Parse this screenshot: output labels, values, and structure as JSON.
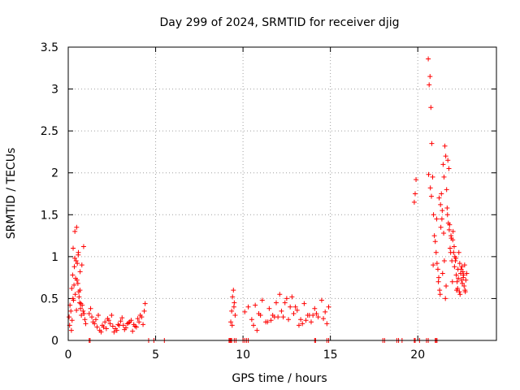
{
  "chart_data": {
    "type": "scatter",
    "title": "Day 299 of 2024, SRMTID for receiver djig",
    "xlabel": "GPS time / hours",
    "ylabel": "SRMTID / TECUs",
    "xlim": [
      0,
      24.5
    ],
    "ylim": [
      0,
      3.5
    ],
    "xticks": [
      0,
      5,
      10,
      15,
      20
    ],
    "xtick_labels": [
      "0",
      "5",
      "10",
      "15",
      "20"
    ],
    "yticks": [
      0,
      0.5,
      1,
      1.5,
      2,
      2.5,
      3,
      3.5
    ],
    "ytick_labels": [
      "0",
      "0.5",
      "1",
      "1.5",
      "2",
      "2.5",
      "3",
      "3.5"
    ],
    "grid": true,
    "marker": "+",
    "colors": {
      "series": "#ff0000",
      "grid": "#a0a0a0",
      "axis": "#000000"
    },
    "series": [
      {
        "name": "SRMTID",
        "x": [
          0.05,
          0.1,
          0.15,
          0.2,
          0.25,
          0.3,
          0.35,
          0.4,
          0.45,
          0.5,
          0.55,
          0.6,
          0.65,
          0.7,
          0.75,
          0.8,
          0.85,
          0.9,
          0.95,
          1.0,
          0.08,
          0.18,
          0.28,
          0.38,
          0.48,
          0.58,
          0.68,
          0.78,
          0.88,
          0.33,
          0.42,
          0.52,
          0.62,
          0.72,
          0.22,
          0.47,
          0.37,
          0.57,
          0.67,
          0.27,
          1.2,
          1.35,
          1.5,
          1.65,
          1.8,
          1.95,
          2.1,
          2.25,
          2.4,
          2.55,
          2.7,
          2.85,
          3.0,
          3.15,
          3.3,
          3.45,
          3.6,
          3.75,
          3.9,
          4.05,
          4.2,
          4.35,
          1.28,
          1.58,
          1.88,
          2.18,
          2.48,
          2.78,
          3.08,
          3.38,
          3.68,
          3.98,
          4.28,
          4.4,
          1.42,
          1.72,
          2.02,
          2.32,
          2.62,
          2.92,
          3.22,
          3.52,
          3.82,
          4.12,
          9.3,
          9.35,
          9.4,
          9.45,
          9.5,
          9.55,
          9.38,
          9.48,
          10.1,
          10.3,
          10.5,
          10.7,
          10.9,
          11.1,
          11.3,
          11.5,
          11.7,
          11.9,
          12.1,
          12.3,
          12.5,
          12.7,
          12.9,
          13.1,
          13.3,
          13.5,
          13.7,
          13.9,
          14.1,
          14.3,
          14.5,
          14.7,
          14.9,
          10.6,
          11.0,
          11.4,
          11.8,
          12.2,
          12.6,
          13.0,
          13.4,
          13.8,
          14.2,
          14.6,
          10.8,
          11.6,
          12.4,
          13.2,
          14.0,
          14.8,
          12.0,
          12.8,
          13.6,
          19.8,
          19.85,
          19.9,
          20.6,
          20.65,
          20.7,
          20.75,
          20.8,
          20.62,
          20.72,
          20.78,
          20.85,
          20.9,
          20.95,
          21.0,
          21.05,
          21.1,
          21.15,
          21.2,
          21.25,
          21.3,
          21.35,
          21.4,
          21.45,
          21.5,
          21.55,
          21.6,
          21.65,
          21.7,
          21.75,
          21.8,
          21.85,
          21.9,
          21.95,
          22.0,
          22.05,
          22.1,
          22.15,
          22.2,
          22.25,
          22.3,
          22.35,
          22.4,
          22.45,
          22.5,
          22.55,
          22.6,
          22.65,
          22.7,
          22.75,
          22.8,
          21.28,
          21.38,
          21.48,
          21.58,
          21.68,
          21.78,
          21.88,
          21.98,
          22.08,
          22.18,
          22.28,
          22.38,
          22.48,
          22.58,
          22.68,
          21.22,
          21.42,
          21.62,
          21.82,
          22.02,
          22.22,
          22.42,
          22.62,
          21.32,
          21.52,
          21.72,
          21.92,
          22.12,
          22.32,
          22.52,
          22.72,
          20.88,
          21.08,
          21.18
        ],
        "y": [
          0.28,
          0.42,
          0.35,
          0.62,
          0.78,
          0.48,
          0.88,
          0.55,
          0.95,
          0.72,
          0.68,
          0.58,
          0.45,
          0.38,
          0.3,
          0.42,
          0.35,
          0.32,
          0.25,
          0.2,
          0.18,
          0.12,
          1.1,
          1.3,
          1.35,
          1.05,
          0.82,
          0.9,
          1.12,
          0.66,
          0.74,
          0.92,
          0.52,
          0.44,
          0.24,
          0.36,
          0.98,
          1.02,
          0.6,
          0.5,
          0.32,
          0.28,
          0.2,
          0.16,
          0.12,
          0.18,
          0.22,
          0.26,
          0.2,
          0.17,
          0.14,
          0.19,
          0.23,
          0.18,
          0.15,
          0.21,
          0.24,
          0.19,
          0.16,
          0.22,
          0.28,
          0.35,
          0.38,
          0.25,
          0.1,
          0.14,
          0.3,
          0.12,
          0.27,
          0.2,
          0.11,
          0.26,
          0.19,
          0.44,
          0.22,
          0.3,
          0.16,
          0.24,
          0.1,
          0.18,
          0.13,
          0.22,
          0.17,
          0.3,
          0.22,
          0.35,
          0.52,
          0.6,
          0.45,
          0.3,
          0.18,
          0.4,
          0.34,
          0.4,
          0.25,
          0.42,
          0.32,
          0.48,
          0.22,
          0.38,
          0.3,
          0.45,
          0.55,
          0.28,
          0.5,
          0.4,
          0.32,
          0.36,
          0.25,
          0.44,
          0.3,
          0.22,
          0.38,
          0.28,
          0.48,
          0.34,
          0.4,
          0.18,
          0.3,
          0.22,
          0.28,
          0.35,
          0.25,
          0.4,
          0.2,
          0.3,
          0.32,
          0.26,
          0.12,
          0.24,
          0.45,
          0.18,
          0.3,
          0.2,
          0.28,
          0.52,
          0.24,
          1.65,
          1.75,
          1.92,
          3.36,
          3.05,
          3.15,
          2.78,
          2.35,
          1.98,
          1.82,
          1.72,
          1.95,
          1.5,
          1.25,
          1.18,
          1.05,
          0.92,
          0.85,
          0.75,
          0.6,
          1.62,
          1.75,
          1.55,
          2.1,
          1.95,
          2.32,
          2.2,
          1.8,
          1.5,
          1.4,
          1.32,
          1.1,
          1.25,
          0.95,
          1.2,
          1.05,
          0.88,
          0.95,
          0.78,
          0.7,
          0.85,
          1.05,
          0.92,
          0.8,
          0.72,
          0.68,
          0.75,
          0.65,
          0.6,
          0.72,
          0.8,
          0.55,
          1.45,
          1.28,
          0.5,
          1.58,
          2.05,
          1.05,
          0.7,
          1.12,
          0.98,
          0.62,
          0.58,
          0.85,
          0.82,
          0.9,
          1.7,
          0.8,
          0.65,
          1.38,
          1.3,
          0.6,
          0.55,
          0.78,
          1.35,
          0.95,
          2.15,
          1.22,
          1.0,
          0.74,
          0.88,
          0.58,
          0.9,
          1.45,
          0.7
        ],
        "zero_x": [
          1.2,
          1.25,
          4.6,
          4.9,
          5.5,
          9.2,
          9.25,
          9.3,
          9.35,
          9.5,
          9.6,
          10.0,
          10.1,
          10.2,
          10.3,
          14.1,
          14.15,
          14.8,
          14.9,
          18.0,
          18.1,
          18.8,
          18.9,
          19.1,
          19.8,
          19.85,
          20.1,
          20.5,
          20.6,
          21.0,
          21.05,
          21.1
        ]
      }
    ]
  }
}
